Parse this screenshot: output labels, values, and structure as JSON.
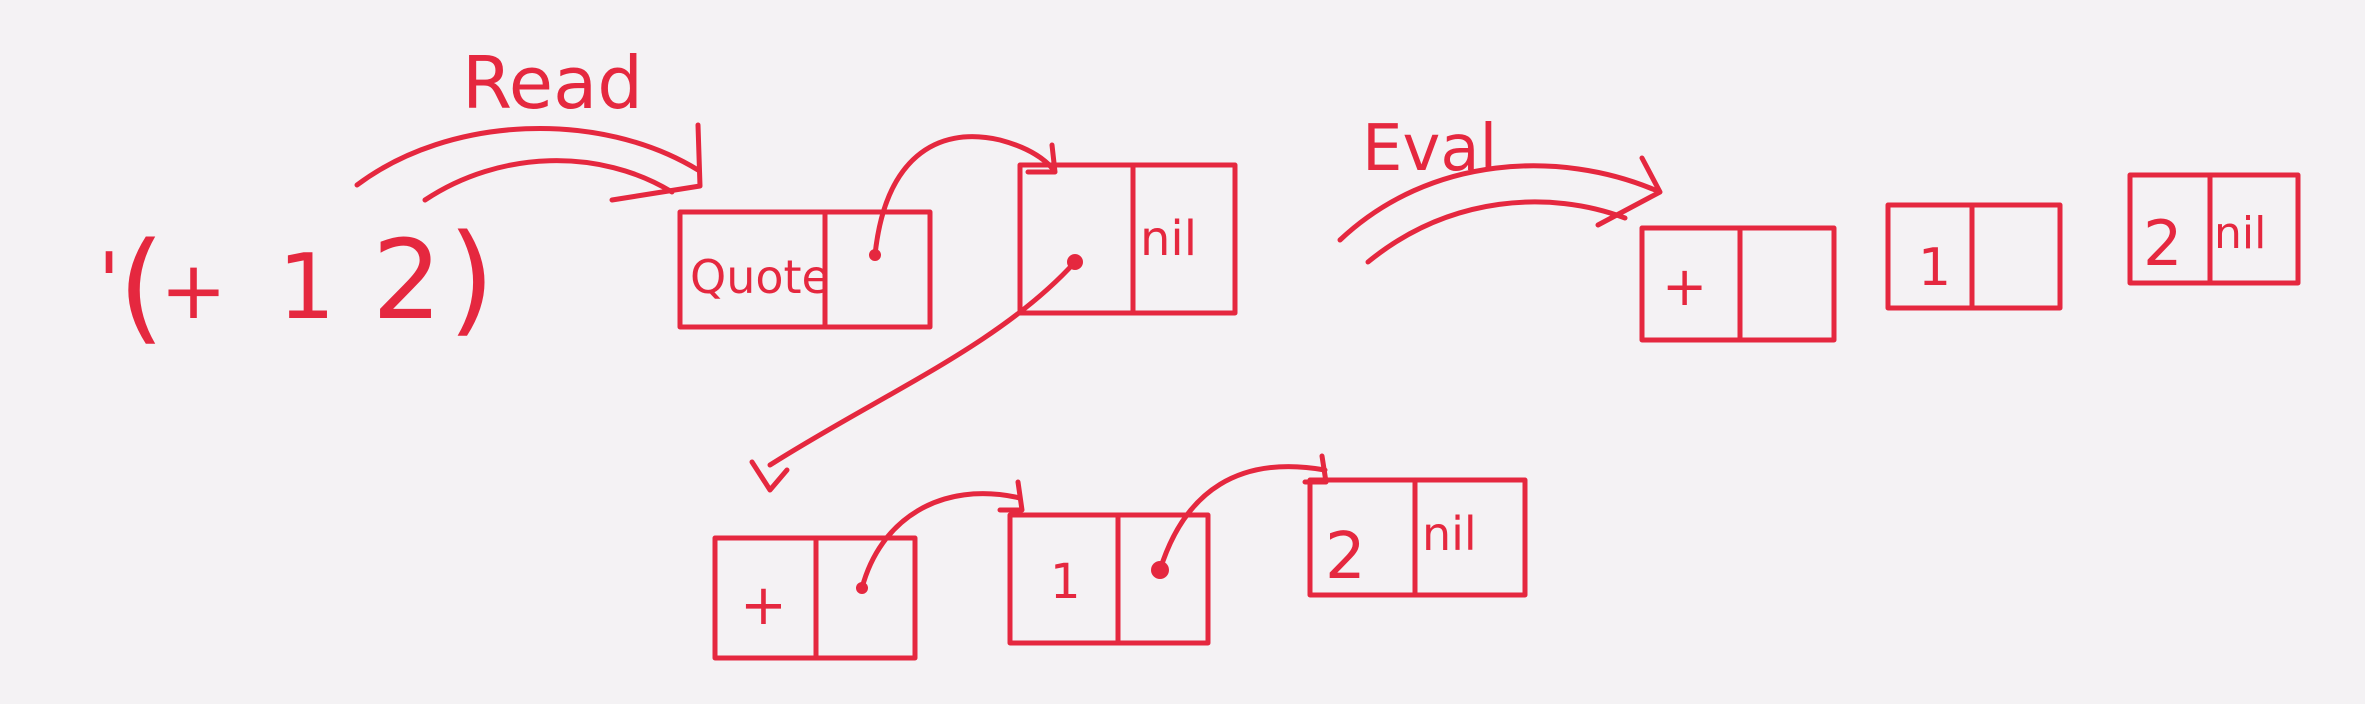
{
  "expression": {
    "quote_mark": "'",
    "open_paren": "(",
    "operator": "+",
    "arg1": "1",
    "arg2": "2",
    "close_paren": ")"
  },
  "arrows": {
    "read": "Read",
    "eval": "Eval"
  },
  "read_result": {
    "outer_list": {
      "cell1_car": "Quote",
      "cell2_cdr": "nil"
    },
    "inner_list": {
      "cell1_car": "+",
      "cell2_car": "1",
      "cell3_car": "2",
      "cell3_cdr": "nil"
    }
  },
  "eval_result": {
    "cell1_car": "+",
    "cell2_car": "1",
    "cell3_car": "2",
    "cell3_cdr": "nil"
  },
  "colors": {
    "ink": "#e5283f",
    "paper": "#f4f2f4"
  }
}
